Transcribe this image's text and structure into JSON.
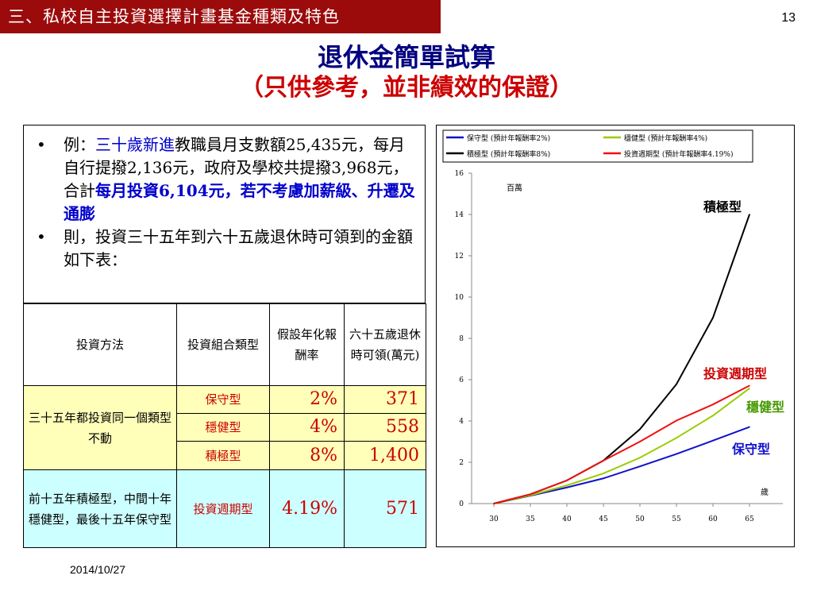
{
  "header": {
    "section_tab": "三、私校自主投資選擇計畫基金種類及特色",
    "page_number": "13",
    "title": "退休金簡單試算",
    "subtitle": "（只供參考，並非績效的保證）"
  },
  "example": {
    "bullet1": {
      "dot": "•",
      "prefix": "例：",
      "highlight": "三十歲新進",
      "text1": "教職員月支數額25,435元，每月自行提撥2,136元，政府及學校共提撥3,968元，合計",
      "highlight2": "每月投資6,104元，若不考慮加薪級、升遷及通膨"
    },
    "bullet2": {
      "dot": "•",
      "text": "則，投資三十五年到六十五歲退休時可領到的金額如下表："
    }
  },
  "table": {
    "headers": [
      "投資方法",
      "投資組合類型",
      "假設年化報酬率",
      "六十五歲退休時可領(萬元)"
    ],
    "group1_label": "三十五年都投資同一個類型不動",
    "rows": [
      {
        "type": "保守型",
        "rate": "2%",
        "amount": "371"
      },
      {
        "type": "穩健型",
        "rate": "4%",
        "amount": "558"
      },
      {
        "type": "積極型",
        "rate": "8%",
        "amount": "1,400"
      }
    ],
    "group2_label": "前十五年積極型，中間十年穩健型，最後十五年保守型",
    "row4": {
      "type": "投資週期型",
      "rate": "4.19%",
      "amount": "571"
    }
  },
  "footer": {
    "date": "2014/10/27"
  },
  "chart_data": {
    "type": "line",
    "title": "",
    "xlabel": "歲",
    "ylabel": "百萬",
    "x": [
      30,
      35,
      40,
      45,
      50,
      55,
      60,
      65
    ],
    "xlim": [
      30,
      65
    ],
    "ylim": [
      0,
      16
    ],
    "yticks": [
      0,
      2,
      4,
      6,
      8,
      10,
      12,
      14,
      16
    ],
    "grid": false,
    "legend_position": "top",
    "series": [
      {
        "name": "保守型 (預計年報酬率2%)",
        "label": "保守型",
        "color": "#1111cc",
        "values": [
          0,
          0.38,
          0.78,
          1.22,
          1.8,
          2.4,
          3.05,
          3.71
        ]
      },
      {
        "name": "穩健型 (預計年報酬率4%)",
        "label": "穩健型",
        "color": "#99cc00",
        "values": [
          0,
          0.4,
          0.88,
          1.46,
          2.22,
          3.18,
          4.26,
          5.58
        ]
      },
      {
        "name": "積極型 (預計年報酬率8%)",
        "label": "積極型",
        "color": "#000000",
        "values": [
          0,
          0.45,
          1.12,
          2.08,
          3.6,
          5.78,
          9.0,
          14.0
        ]
      },
      {
        "name": "投資週期型 (預計年報酬率4.19%)",
        "label": "投資週期型",
        "color": "#ee1111",
        "values": [
          0,
          0.45,
          1.12,
          2.08,
          3.0,
          4.02,
          4.8,
          5.71
        ]
      }
    ]
  }
}
